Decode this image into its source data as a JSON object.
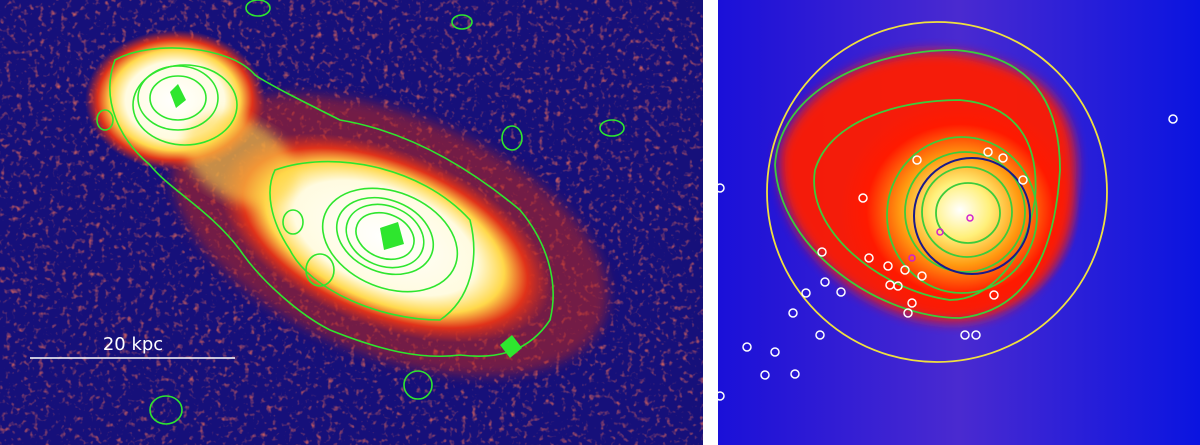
{
  "left_panel": {
    "scale_bar_label": "20 kpc"
  }
}
